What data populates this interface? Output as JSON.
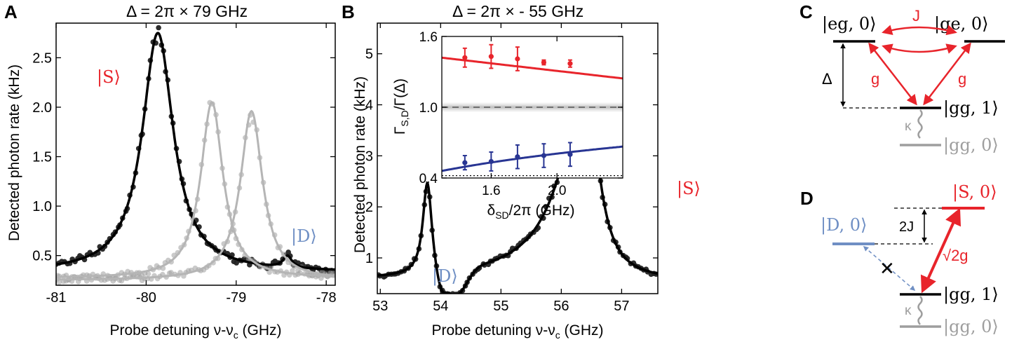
{
  "panels": {
    "A": {
      "letter": "A",
      "title": "Δ = 2π × 79 GHz",
      "xlabel": "Probe detuning ν-ν",
      "xlabel_sub": "c",
      "xlabel_unit": " (GHz)",
      "ylabel": "Detected photon rate (kHz)",
      "label_S": "|S⟩",
      "label_D": "|D⟩",
      "xticks": [
        "-81",
        "-80",
        "-79",
        "-78"
      ],
      "yticks": [
        "0.5",
        "1.0",
        "1.5",
        "2.0",
        "2.5"
      ]
    },
    "B": {
      "letter": "B",
      "title": "Δ = 2π × - 55 GHz",
      "xlabel": "Probe detuning ν-ν",
      "xlabel_sub": "c",
      "xlabel_unit": " (GHz)",
      "ylabel": "Detected photon rate (kHz)",
      "label_S": "|S⟩",
      "label_D": "|D⟩",
      "xticks": [
        "53",
        "54",
        "55",
        "56",
        "57"
      ],
      "yticks": [
        "1",
        "2",
        "3",
        "4",
        "5"
      ]
    },
    "inset": {
      "ylabel": "Γ",
      "ylabel_sub": "S,D",
      "ylabel_rest": "/Γ(Δ)",
      "xlabel": "δ",
      "xlabel_sub": "SD",
      "xlabel_rest": "/2π (GHz)",
      "xticks": [
        "1.6",
        "2.0"
      ],
      "yticks": [
        "0.4",
        "1.0",
        "1.6"
      ]
    },
    "C": {
      "letter": "C",
      "eg0": "|eg, 0⟩",
      "ge0": "|ge, 0⟩",
      "gg1": "|gg, 1⟩",
      "gg0": "|gg, 0⟩",
      "J": "J",
      "g_left": "g",
      "g_right": "g",
      "Delta": "Δ",
      "kappa": "κ"
    },
    "D": {
      "letter": "D",
      "S0": "|S, 0⟩",
      "D0": "|D, 0⟩",
      "gg1": "|gg, 1⟩",
      "gg0": "|gg, 0⟩",
      "twoJ": "2J",
      "sqrt2g": "√2g",
      "kappa": "κ",
      "cross": "✕"
    }
  },
  "colors": {
    "red": "#e8242b",
    "blue": "#6f8fc4",
    "navy": "#283593",
    "gray": "#9e9e9e",
    "black": "#000000"
  },
  "chart_data": [
    {
      "type": "scatter",
      "panel": "A",
      "xlim": [
        -81,
        -77.9
      ],
      "ylim": [
        0.2,
        2.85
      ],
      "series": [
        {
          "name": "|S⟩",
          "kind": "dark",
          "model": "lorentzian",
          "curve": [
            [
              -79.87,
              2.42,
              0.42
            ],
            [
              -78.43,
              0.12,
              0.12
            ]
          ],
          "baseline": 0.33
        },
        {
          "kind": "light",
          "model": "lorentzian",
          "curve": [
            [
              -79.27,
              1.78,
              0.3
            ]
          ],
          "baseline": 0.27
        },
        {
          "kind": "light",
          "model": "lorentzian",
          "curve": [
            [
              -78.83,
              1.71,
              0.3
            ]
          ],
          "baseline": 0.25
        }
      ]
    },
    {
      "type": "scatter",
      "panel": "B",
      "xlim": [
        52.95,
        57.6
      ],
      "ylim": [
        0.3,
        5.6
      ],
      "series": [
        {
          "name": "|S⟩ / |D⟩",
          "kind": "dark",
          "model": "fano",
          "curve": [
            [
              56.43,
              3.7,
              0.85
            ],
            [
              53.78,
              1.8,
              0.18
            ]
          ],
          "baseline": 0.55
        }
      ]
    },
    {
      "type": "scatter",
      "panel": "inset",
      "xlim": [
        1.3,
        2.4
      ],
      "ylim": [
        0.4,
        1.6
      ],
      "series": [
        {
          "kind": "red",
          "x": [
            1.44,
            1.6,
            1.76,
            1.92,
            2.08
          ],
          "y": [
            1.42,
            1.43,
            1.41,
            1.38,
            1.37
          ],
          "err": [
            0.08,
            0.1,
            0.1,
            0.02,
            0.03
          ]
        },
        {
          "kind": "blue",
          "x": [
            1.44,
            1.6,
            1.76,
            1.92,
            2.08
          ],
          "y": [
            0.53,
            0.54,
            0.58,
            0.59,
            0.6
          ],
          "err": [
            0.06,
            0.08,
            0.1,
            0.1,
            0.1
          ]
        }
      ],
      "reference_line": 1.0,
      "floor_line": 0.42
    }
  ]
}
